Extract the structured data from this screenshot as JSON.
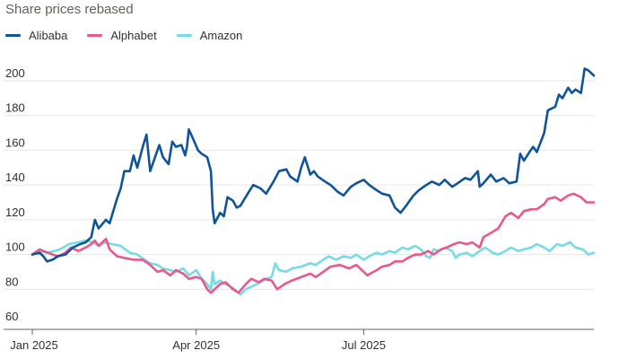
{
  "header": {
    "subtitle": "Share prices rebased"
  },
  "chart_data": {
    "type": "line",
    "subtitle": "Share prices rebased",
    "x_ticks": [
      "Jan 2025",
      "Apr 2025",
      "Jul 2025"
    ],
    "ylim": [
      60,
      210
    ],
    "y_ticks": [
      60,
      80,
      100,
      120,
      140,
      160,
      180,
      200
    ],
    "grid": "horizontal",
    "legend": "top-left",
    "series": [
      {
        "name": "Alibaba",
        "color": "#0f5499",
        "points": [
          [
            "2025-01-02",
            100
          ],
          [
            "2025-01-06",
            101
          ],
          [
            "2025-01-08",
            99
          ],
          [
            "2025-01-10",
            96
          ],
          [
            "2025-01-13",
            97
          ],
          [
            "2025-01-16",
            99
          ],
          [
            "2025-01-20",
            100
          ],
          [
            "2025-01-24",
            104
          ],
          [
            "2025-01-28",
            106
          ],
          [
            "2025-01-31",
            107
          ],
          [
            "2025-02-03",
            110
          ],
          [
            "2025-02-05",
            120
          ],
          [
            "2025-02-07",
            115
          ],
          [
            "2025-02-11",
            120
          ],
          [
            "2025-02-13",
            118
          ],
          [
            "2025-02-17",
            132
          ],
          [
            "2025-02-19",
            138
          ],
          [
            "2025-02-21",
            148
          ],
          [
            "2025-02-24",
            148
          ],
          [
            "2025-02-26",
            157
          ],
          [
            "2025-02-28",
            150
          ],
          [
            "2025-03-03",
            162
          ],
          [
            "2025-03-05",
            169
          ],
          [
            "2025-03-07",
            148
          ],
          [
            "2025-03-10",
            157
          ],
          [
            "2025-03-12",
            163
          ],
          [
            "2025-03-14",
            156
          ],
          [
            "2025-03-17",
            152
          ],
          [
            "2025-03-19",
            165
          ],
          [
            "2025-03-21",
            162
          ],
          [
            "2025-03-24",
            163
          ],
          [
            "2025-03-26",
            157
          ],
          [
            "2025-03-27",
            162
          ],
          [
            "2025-03-28",
            172
          ],
          [
            "2025-03-31",
            165
          ],
          [
            "2025-04-02",
            160
          ],
          [
            "2025-04-04",
            158
          ],
          [
            "2025-04-07",
            156
          ],
          [
            "2025-04-09",
            148
          ],
          [
            "2025-04-10",
            126
          ],
          [
            "2025-04-11",
            118
          ],
          [
            "2025-04-14",
            124
          ],
          [
            "2025-04-16",
            122
          ],
          [
            "2025-04-18",
            133
          ],
          [
            "2025-04-21",
            131
          ],
          [
            "2025-04-23",
            127
          ],
          [
            "2025-04-25",
            128
          ],
          [
            "2025-04-29",
            135
          ],
          [
            "2025-05-02",
            140
          ],
          [
            "2025-05-06",
            138
          ],
          [
            "2025-05-09",
            135
          ],
          [
            "2025-05-13",
            142
          ],
          [
            "2025-05-16",
            148
          ],
          [
            "2025-05-20",
            149
          ],
          [
            "2025-05-22",
            145
          ],
          [
            "2025-05-26",
            142
          ],
          [
            "2025-05-28",
            150
          ],
          [
            "2025-05-30",
            156
          ],
          [
            "2025-06-02",
            146
          ],
          [
            "2025-06-04",
            148
          ],
          [
            "2025-06-06",
            145
          ],
          [
            "2025-06-10",
            142
          ],
          [
            "2025-06-13",
            140
          ],
          [
            "2025-06-17",
            136
          ],
          [
            "2025-06-20",
            134
          ],
          [
            "2025-06-24",
            139
          ],
          [
            "2025-06-27",
            141
          ],
          [
            "2025-07-01",
            143
          ],
          [
            "2025-07-04",
            140
          ],
          [
            "2025-07-08",
            137
          ],
          [
            "2025-07-11",
            135
          ],
          [
            "2025-07-15",
            134
          ],
          [
            "2025-07-18",
            127
          ],
          [
            "2025-07-21",
            124
          ],
          [
            "2025-07-24",
            128
          ],
          [
            "2025-07-28",
            134
          ],
          [
            "2025-07-31",
            137
          ],
          [
            "2025-08-04",
            140
          ],
          [
            "2025-08-07",
            142
          ],
          [
            "2025-08-11",
            140
          ],
          [
            "2025-08-14",
            143
          ],
          [
            "2025-08-18",
            139
          ],
          [
            "2025-08-21",
            141
          ],
          [
            "2025-08-25",
            144
          ],
          [
            "2025-08-28",
            143
          ],
          [
            "2025-09-01",
            148
          ],
          [
            "2025-09-02",
            139
          ],
          [
            "2025-09-04",
            141
          ],
          [
            "2025-09-08",
            146
          ],
          [
            "2025-09-11",
            142
          ],
          [
            "2025-09-15",
            144
          ],
          [
            "2025-09-18",
            141
          ],
          [
            "2025-09-22",
            142
          ],
          [
            "2025-09-24",
            158
          ],
          [
            "2025-09-26",
            154
          ],
          [
            "2025-09-29",
            159
          ],
          [
            "2025-10-01",
            162
          ],
          [
            "2025-10-03",
            159
          ],
          [
            "2025-10-07",
            170
          ],
          [
            "2025-10-09",
            183
          ],
          [
            "2025-10-13",
            185
          ],
          [
            "2025-10-15",
            192
          ],
          [
            "2025-10-17",
            190
          ],
          [
            "2025-10-20",
            196
          ],
          [
            "2025-10-22",
            193
          ],
          [
            "2025-10-24",
            195
          ],
          [
            "2025-10-27",
            193
          ],
          [
            "2025-10-29",
            207
          ],
          [
            "2025-10-31",
            206
          ],
          [
            "2025-11-03",
            203
          ]
        ]
      },
      {
        "name": "Alphabet",
        "color": "#e9588b",
        "points": [
          [
            "2025-01-02",
            100
          ],
          [
            "2025-01-06",
            103
          ],
          [
            "2025-01-08",
            102
          ],
          [
            "2025-01-13",
            100
          ],
          [
            "2025-01-16",
            99
          ],
          [
            "2025-01-20",
            101
          ],
          [
            "2025-01-23",
            104
          ],
          [
            "2025-01-27",
            102
          ],
          [
            "2025-01-31",
            104
          ],
          [
            "2025-02-03",
            106
          ],
          [
            "2025-02-05",
            108
          ],
          [
            "2025-02-07",
            105
          ],
          [
            "2025-02-11",
            109
          ],
          [
            "2025-02-13",
            103
          ],
          [
            "2025-02-17",
            99
          ],
          [
            "2025-02-21",
            98
          ],
          [
            "2025-02-26",
            97
          ],
          [
            "2025-03-03",
            97
          ],
          [
            "2025-03-07",
            94
          ],
          [
            "2025-03-11",
            90
          ],
          [
            "2025-03-14",
            91
          ],
          [
            "2025-03-18",
            88
          ],
          [
            "2025-03-21",
            91
          ],
          [
            "2025-03-25",
            89
          ],
          [
            "2025-03-28",
            86
          ],
          [
            "2025-04-01",
            87
          ],
          [
            "2025-04-04",
            86
          ],
          [
            "2025-04-07",
            80
          ],
          [
            "2025-04-09",
            78
          ],
          [
            "2025-04-11",
            80
          ],
          [
            "2025-04-14",
            83
          ],
          [
            "2025-04-17",
            84
          ],
          [
            "2025-04-21",
            80
          ],
          [
            "2025-04-24",
            78
          ],
          [
            "2025-04-28",
            83
          ],
          [
            "2025-05-01",
            86
          ],
          [
            "2025-05-05",
            84
          ],
          [
            "2025-05-08",
            86
          ],
          [
            "2025-05-12",
            85
          ],
          [
            "2025-05-15",
            80
          ],
          [
            "2025-05-19",
            83
          ],
          [
            "2025-05-23",
            85
          ],
          [
            "2025-05-28",
            87
          ],
          [
            "2025-06-02",
            89
          ],
          [
            "2025-06-05",
            87
          ],
          [
            "2025-06-09",
            90
          ],
          [
            "2025-06-13",
            93
          ],
          [
            "2025-06-18",
            94
          ],
          [
            "2025-06-23",
            92
          ],
          [
            "2025-06-27",
            94
          ],
          [
            "2025-07-01",
            90
          ],
          [
            "2025-07-03",
            88
          ],
          [
            "2025-07-08",
            91
          ],
          [
            "2025-07-11",
            93
          ],
          [
            "2025-07-15",
            94
          ],
          [
            "2025-07-18",
            96
          ],
          [
            "2025-07-22",
            96
          ],
          [
            "2025-07-25",
            98
          ],
          [
            "2025-07-29",
            100
          ],
          [
            "2025-08-01",
            100
          ],
          [
            "2025-08-05",
            102
          ],
          [
            "2025-08-08",
            100
          ],
          [
            "2025-08-12",
            103
          ],
          [
            "2025-08-15",
            104
          ],
          [
            "2025-08-19",
            106
          ],
          [
            "2025-08-22",
            107
          ],
          [
            "2025-08-26",
            106
          ],
          [
            "2025-08-29",
            107
          ],
          [
            "2025-09-02",
            104
          ],
          [
            "2025-09-04",
            110
          ],
          [
            "2025-09-09",
            113
          ],
          [
            "2025-09-12",
            115
          ],
          [
            "2025-09-16",
            122
          ],
          [
            "2025-09-19",
            124
          ],
          [
            "2025-09-23",
            121
          ],
          [
            "2025-09-26",
            125
          ],
          [
            "2025-09-30",
            126
          ],
          [
            "2025-10-03",
            126
          ],
          [
            "2025-10-07",
            129
          ],
          [
            "2025-10-09",
            132
          ],
          [
            "2025-10-13",
            133
          ],
          [
            "2025-10-16",
            131
          ],
          [
            "2025-10-20",
            134
          ],
          [
            "2025-10-23",
            135
          ],
          [
            "2025-10-27",
            133
          ],
          [
            "2025-10-30",
            130
          ],
          [
            "2025-11-03",
            130
          ]
        ]
      },
      {
        "name": "Amazon",
        "color": "#75dbe7",
        "points": [
          [
            "2025-01-02",
            100
          ],
          [
            "2025-01-06",
            102
          ],
          [
            "2025-01-10",
            101
          ],
          [
            "2025-01-14",
            102
          ],
          [
            "2025-01-17",
            103
          ],
          [
            "2025-01-22",
            106
          ],
          [
            "2025-01-27",
            107
          ],
          [
            "2025-01-31",
            108
          ],
          [
            "2025-02-04",
            107
          ],
          [
            "2025-02-07",
            105
          ],
          [
            "2025-02-11",
            107
          ],
          [
            "2025-02-14",
            106
          ],
          [
            "2025-02-19",
            105
          ],
          [
            "2025-02-24",
            101
          ],
          [
            "2025-02-28",
            100
          ],
          [
            "2025-03-04",
            97
          ],
          [
            "2025-03-07",
            95
          ],
          [
            "2025-03-11",
            94
          ],
          [
            "2025-03-14",
            92
          ],
          [
            "2025-03-18",
            91
          ],
          [
            "2025-03-21",
            90
          ],
          [
            "2025-03-25",
            92
          ],
          [
            "2025-03-28",
            88
          ],
          [
            "2025-04-01",
            91
          ],
          [
            "2025-04-04",
            86
          ],
          [
            "2025-04-07",
            83
          ],
          [
            "2025-04-09",
            80
          ],
          [
            "2025-04-10",
            90
          ],
          [
            "2025-04-11",
            83
          ],
          [
            "2025-04-14",
            85
          ],
          [
            "2025-04-17",
            83
          ],
          [
            "2025-04-22",
            80
          ],
          [
            "2025-04-25",
            77
          ],
          [
            "2025-04-28",
            80
          ],
          [
            "2025-05-02",
            82
          ],
          [
            "2025-05-06",
            84
          ],
          [
            "2025-05-09",
            86
          ],
          [
            "2025-05-12",
            87
          ],
          [
            "2025-05-14",
            95
          ],
          [
            "2025-05-16",
            91
          ],
          [
            "2025-05-20",
            90
          ],
          [
            "2025-05-23",
            92
          ],
          [
            "2025-05-28",
            93
          ],
          [
            "2025-06-02",
            95
          ],
          [
            "2025-06-05",
            94
          ],
          [
            "2025-06-09",
            97
          ],
          [
            "2025-06-12",
            99
          ],
          [
            "2025-06-16",
            97
          ],
          [
            "2025-06-20",
            99
          ],
          [
            "2025-06-24",
            98
          ],
          [
            "2025-06-27",
            100
          ],
          [
            "2025-07-01",
            97
          ],
          [
            "2025-07-04",
            99
          ],
          [
            "2025-07-08",
            101
          ],
          [
            "2025-07-11",
            100
          ],
          [
            "2025-07-15",
            102
          ],
          [
            "2025-07-18",
            101
          ],
          [
            "2025-07-22",
            104
          ],
          [
            "2025-07-25",
            103
          ],
          [
            "2025-07-29",
            105
          ],
          [
            "2025-08-01",
            103
          ],
          [
            "2025-08-04",
            99
          ],
          [
            "2025-08-06",
            98
          ],
          [
            "2025-08-08",
            103
          ],
          [
            "2025-08-11",
            102
          ],
          [
            "2025-08-14",
            104
          ],
          [
            "2025-08-18",
            102
          ],
          [
            "2025-08-20",
            98
          ],
          [
            "2025-08-22",
            100
          ],
          [
            "2025-08-26",
            101
          ],
          [
            "2025-08-29",
            99
          ],
          [
            "2025-09-02",
            102
          ],
          [
            "2025-09-05",
            104
          ],
          [
            "2025-09-09",
            101
          ],
          [
            "2025-09-12",
            100
          ],
          [
            "2025-09-16",
            102
          ],
          [
            "2025-09-19",
            104
          ],
          [
            "2025-09-23",
            102
          ],
          [
            "2025-09-26",
            103
          ],
          [
            "2025-09-30",
            104
          ],
          [
            "2025-10-03",
            106
          ],
          [
            "2025-10-07",
            104
          ],
          [
            "2025-10-10",
            102
          ],
          [
            "2025-10-14",
            106
          ],
          [
            "2025-10-17",
            105
          ],
          [
            "2025-10-21",
            107
          ],
          [
            "2025-10-24",
            104
          ],
          [
            "2025-10-28",
            103
          ],
          [
            "2025-10-31",
            100
          ],
          [
            "2025-11-03",
            101
          ]
        ]
      }
    ]
  }
}
